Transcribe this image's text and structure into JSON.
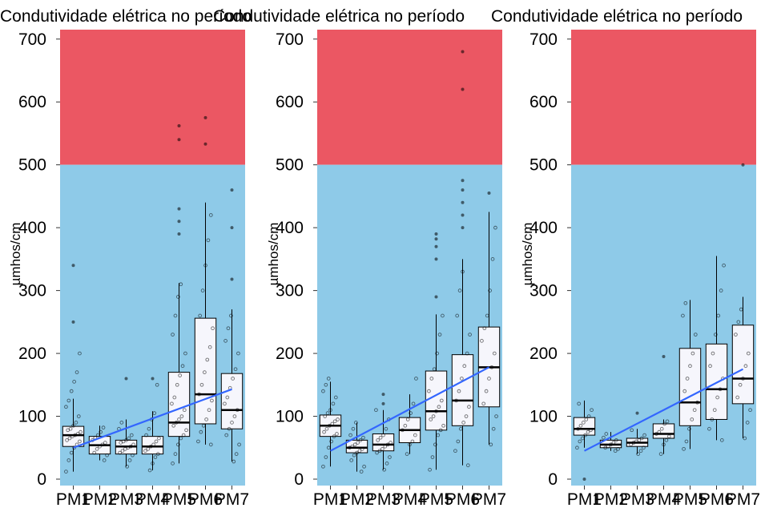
{
  "colors": {
    "danger_zone": "#EB5763",
    "safe_zone": "#8ECAE8",
    "box_fill": "#F6F6FC",
    "trend": "#3366FF",
    "ink": "#000000"
  },
  "chart_data": [
    {
      "type": "box",
      "title": "Condutividade elétrica no período",
      "ylabel": "µmhos/cm",
      "ylim": [
        0,
        715
      ],
      "yticks": [
        0,
        100,
        200,
        300,
        400,
        500,
        600,
        700
      ],
      "threshold": 500,
      "categories": [
        "PM1",
        "PM2",
        "PM3",
        "PM4",
        "PM5",
        "PM6",
        "PM7"
      ],
      "boxes": [
        {
          "min": 12,
          "q1": 52,
          "median": 70,
          "q3": 84,
          "max": 128,
          "outliers": [
            250,
            340
          ]
        },
        {
          "min": 30,
          "q1": 40,
          "median": 54,
          "q3": 68,
          "max": 85,
          "outliers": []
        },
        {
          "min": 20,
          "q1": 40,
          "median": 52,
          "q3": 62,
          "max": 95,
          "outliers": [
            160
          ]
        },
        {
          "min": 14,
          "q1": 40,
          "median": 52,
          "q3": 68,
          "max": 108,
          "outliers": [
            160
          ]
        },
        {
          "min": 25,
          "q1": 68,
          "median": 90,
          "q3": 170,
          "max": 312,
          "outliers": [
            390,
            410,
            430,
            540,
            562
          ]
        },
        {
          "min": 55,
          "q1": 88,
          "median": 135,
          "q3": 256,
          "max": 440,
          "outliers": [
            533,
            575
          ]
        },
        {
          "min": 28,
          "q1": 80,
          "median": 110,
          "q3": 168,
          "max": 270,
          "outliers": [
            318,
            400,
            460
          ]
        }
      ],
      "points": [
        [
          12,
          30,
          42,
          50,
          55,
          60,
          62,
          65,
          68,
          70,
          72,
          75,
          78,
          80,
          85,
          90,
          100,
          115,
          125,
          140,
          155,
          170,
          200
        ],
        [
          30,
          38,
          42,
          48,
          52,
          55,
          58,
          62,
          66,
          70,
          75,
          82
        ],
        [
          20,
          30,
          38,
          42,
          45,
          48,
          50,
          52,
          55,
          58,
          60,
          62,
          65,
          70,
          80,
          90
        ],
        [
          14,
          25,
          35,
          40,
          45,
          48,
          52,
          55,
          60,
          65,
          70,
          80,
          95,
          105,
          150
        ],
        [
          25,
          40,
          55,
          65,
          70,
          78,
          85,
          90,
          95,
          100,
          110,
          120,
          130,
          150,
          165,
          180,
          200,
          230,
          260,
          290,
          310
        ],
        [
          55,
          60,
          75,
          85,
          95,
          110,
          125,
          135,
          150,
          170,
          190,
          210,
          240,
          260,
          300,
          340,
          380,
          420
        ],
        [
          28,
          40,
          55,
          70,
          80,
          90,
          100,
          110,
          120,
          130,
          145,
          160,
          175,
          200,
          220,
          240,
          260
        ]
      ],
      "trend": {
        "x": [
          "PM1",
          "PM7"
        ],
        "y": [
          50,
          143
        ]
      }
    },
    {
      "type": "box",
      "title": "Condutividade elétrica no período",
      "ylabel": "µmhos/cm",
      "ylim": [
        0,
        715
      ],
      "yticks": [
        0,
        100,
        200,
        300,
        400,
        500,
        600,
        700
      ],
      "threshold": 500,
      "categories": [
        "PM1",
        "PM2",
        "PM3",
        "PM4",
        "PM5",
        "PM6",
        "PM7"
      ],
      "boxes": [
        {
          "min": 20,
          "q1": 68,
          "median": 85,
          "q3": 102,
          "max": 155,
          "outliers": []
        },
        {
          "min": 12,
          "q1": 42,
          "median": 50,
          "q3": 62,
          "max": 90,
          "outliers": []
        },
        {
          "min": 15,
          "q1": 45,
          "median": 55,
          "q3": 72,
          "max": 110,
          "outliers": [
            120,
            135
          ]
        },
        {
          "min": 40,
          "q1": 58,
          "median": 78,
          "q3": 98,
          "max": 135,
          "outliers": []
        },
        {
          "min": 15,
          "q1": 78,
          "median": 108,
          "q3": 172,
          "max": 262,
          "outliers": [
            290,
            350,
            370,
            382,
            390
          ]
        },
        {
          "min": 22,
          "q1": 85,
          "median": 125,
          "q3": 198,
          "max": 350,
          "outliers": [
            400,
            420,
            440,
            460,
            475,
            620,
            680
          ]
        },
        {
          "min": 55,
          "q1": 115,
          "median": 178,
          "q3": 242,
          "max": 425,
          "outliers": [
            455
          ]
        }
      ],
      "points": [
        [
          20,
          35,
          50,
          60,
          68,
          72,
          75,
          80,
          85,
          88,
          92,
          95,
          100,
          105,
          110,
          120,
          130,
          140,
          150,
          160
        ],
        [
          12,
          20,
          30,
          38,
          42,
          45,
          48,
          50,
          52,
          55,
          58,
          62,
          66,
          70,
          80,
          90
        ],
        [
          15,
          25,
          35,
          42,
          45,
          48,
          52,
          55,
          58,
          62,
          66,
          70,
          80,
          95,
          110
        ],
        [
          40,
          55,
          60,
          70,
          78,
          85,
          95,
          105,
          120,
          160
        ],
        [
          15,
          35,
          55,
          70,
          78,
          85,
          95,
          100,
          108,
          115,
          125,
          140,
          160,
          175,
          200,
          230,
          260
        ],
        [
          22,
          45,
          60,
          80,
          90,
          100,
          115,
          125,
          140,
          160,
          180,
          200,
          230,
          260,
          300,
          330
        ],
        [
          55,
          80,
          100,
          120,
          140,
          160,
          178,
          200,
          220,
          240,
          260,
          300,
          350,
          400
        ]
      ],
      "trend": {
        "x": [
          "PM1",
          "PM7"
        ],
        "y": [
          45,
          178
        ]
      }
    },
    {
      "type": "box",
      "title": "Condutividade elétrica no período",
      "ylabel": "µmhos/cm",
      "ylim": [
        0,
        715
      ],
      "yticks": [
        0,
        100,
        200,
        300,
        400,
        500,
        600,
        700
      ],
      "threshold": 500,
      "categories": [
        "PM1",
        "PM2",
        "PM3",
        "PM4",
        "PM5",
        "PM6",
        "PM7"
      ],
      "boxes": [
        {
          "min": 50,
          "q1": 70,
          "median": 80,
          "q3": 98,
          "max": 125,
          "outliers": [
            0
          ]
        },
        {
          "min": 45,
          "q1": 50,
          "median": 55,
          "q3": 62,
          "max": 75,
          "outliers": []
        },
        {
          "min": 40,
          "q1": 52,
          "median": 58,
          "q3": 65,
          "max": 80,
          "outliers": [
            105
          ]
        },
        {
          "min": 40,
          "q1": 65,
          "median": 72,
          "q3": 88,
          "max": 95,
          "outliers": [
            195
          ]
        },
        {
          "min": 48,
          "q1": 85,
          "median": 122,
          "q3": 208,
          "max": 285,
          "outliers": []
        },
        {
          "min": 62,
          "q1": 95,
          "median": 143,
          "q3": 215,
          "max": 355,
          "outliers": []
        },
        {
          "min": 65,
          "q1": 120,
          "median": 160,
          "q3": 245,
          "max": 290,
          "outliers": [
            500
          ]
        }
      ],
      "points": [
        [
          50,
          60,
          65,
          70,
          75,
          78,
          80,
          85,
          90,
          95,
          100,
          110,
          120
        ],
        [
          45,
          48,
          50,
          52,
          55,
          58,
          62,
          66,
          72
        ],
        [
          40,
          45,
          50,
          55,
          58,
          60,
          62,
          65,
          70,
          78
        ],
        [
          40,
          55,
          62,
          68,
          72,
          75,
          80,
          88,
          92
        ],
        [
          48,
          60,
          80,
          95,
          110,
          122,
          140,
          160,
          180,
          200,
          230,
          260,
          280
        ],
        [
          62,
          80,
          95,
          110,
          130,
          143,
          160,
          180,
          200,
          230,
          260,
          300,
          340
        ],
        [
          65,
          90,
          110,
          130,
          150,
          160,
          180,
          200,
          230,
          250,
          270
        ]
      ],
      "trend": {
        "x": [
          "PM1",
          "PM7"
        ],
        "y": [
          45,
          175
        ]
      }
    }
  ]
}
